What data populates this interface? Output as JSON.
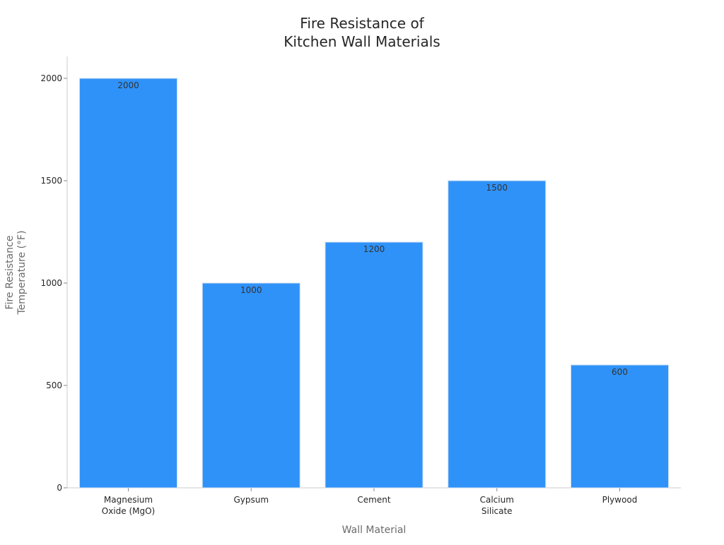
{
  "chart_data": {
    "type": "bar",
    "title": "Fire Resistance of\nKitchen Wall Materials",
    "xlabel": "Wall Material",
    "ylabel": "Fire Resistance\nTemperature (°F)",
    "categories": [
      "Magnesium\nOxide (MgO)",
      "Gypsum",
      "Cement",
      "Calcium\nSilicate",
      "Plywood"
    ],
    "values": [
      2000,
      1000,
      1200,
      1500,
      600
    ],
    "data_labels": [
      "2000",
      "1000",
      "1200",
      "1500",
      "600"
    ],
    "yticks": [
      0,
      500,
      1000,
      1500,
      2000
    ],
    "ylim": [
      0,
      2100
    ],
    "grid": false,
    "legend": "none",
    "colors": {
      "bar": "#2f92f8",
      "bar_edge": "#c9dcef",
      "axis": "#cccccc",
      "tick_text": "#262626",
      "axis_title": "#6b6b6b",
      "title": "#262626"
    }
  }
}
